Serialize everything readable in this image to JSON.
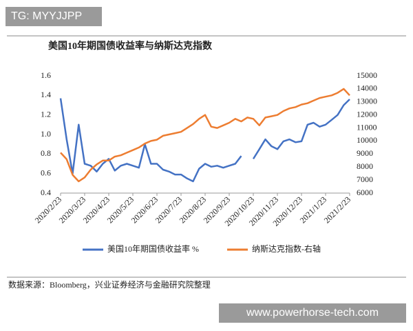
{
  "watermark_top": "TG: MYYJJPP",
  "source": "数据来源：Bloomberg，兴业证券经济与金融研究院整理",
  "watermark_bottom": "www.powerhorse-tech.com",
  "chart_data": {
    "type": "line",
    "title": "美国10年期国债收益率与纳斯达克指数",
    "categories": [
      "2020/2/23",
      null,
      null,
      null,
      "2020/3/23",
      null,
      null,
      null,
      "2020/4/23",
      null,
      null,
      null,
      "2020/5/23",
      null,
      null,
      null,
      "2020/6/23",
      null,
      null,
      null,
      "2020/7/23",
      null,
      null,
      null,
      "2020/8/23",
      null,
      null,
      null,
      "2020/9/23",
      null,
      null,
      null,
      "2020/10/23",
      null,
      null,
      null,
      "2020/11/23",
      null,
      null,
      null,
      "2020/12/23",
      null,
      null,
      null,
      "2021/1/23",
      null,
      null,
      null,
      "2021/2/23"
    ],
    "series": [
      {
        "name": "美国10年期国债收益率 %",
        "color": "#4472c4",
        "values": [
          1.37,
          0.95,
          0.6,
          1.1,
          0.7,
          0.68,
          0.62,
          0.7,
          0.75,
          0.63,
          0.68,
          0.7,
          0.68,
          0.66,
          0.9,
          0.7,
          0.7,
          0.64,
          0.62,
          0.59,
          0.59,
          0.55,
          0.52,
          0.65,
          0.7,
          0.67,
          0.68,
          0.66,
          0.68,
          0.7,
          0.78,
          null,
          0.75,
          0.85,
          0.95,
          0.88,
          0.85,
          0.93,
          0.95,
          0.92,
          0.93,
          1.1,
          1.12,
          1.08,
          1.1,
          1.15,
          1.2,
          1.3,
          1.36
        ]
      },
      {
        "name": "纳斯达克指数-右轴",
        "color": "#ed7d31",
        "axis": "y2",
        "values": [
          9100,
          8600,
          7400,
          6900,
          7200,
          7800,
          8200,
          8500,
          8500,
          8800,
          8900,
          9100,
          9300,
          9500,
          9800,
          10000,
          10100,
          10400,
          10500,
          10600,
          10700,
          11000,
          11300,
          11700,
          12000,
          11100,
          11000,
          11200,
          11400,
          11700,
          11500,
          11800,
          11700,
          11200,
          11800,
          11900,
          12000,
          12300,
          12500,
          12600,
          12800,
          12900,
          13100,
          13300,
          13400,
          13500,
          13700,
          14000,
          13500
        ]
      }
    ],
    "ylim": [
      0.4,
      1.6
    ],
    "yticks": [
      0.4,
      0.6,
      0.8,
      {
        "value": 1,
        "label": "1.0"
      },
      1.2,
      1.4,
      1.6
    ],
    "y2lim": [
      6000,
      15000
    ],
    "y2ticks": [
      6000,
      7000,
      8000,
      9000,
      10000,
      11000,
      12000,
      13000,
      14000,
      15000
    ],
    "grid": false,
    "legend": "bottom"
  }
}
